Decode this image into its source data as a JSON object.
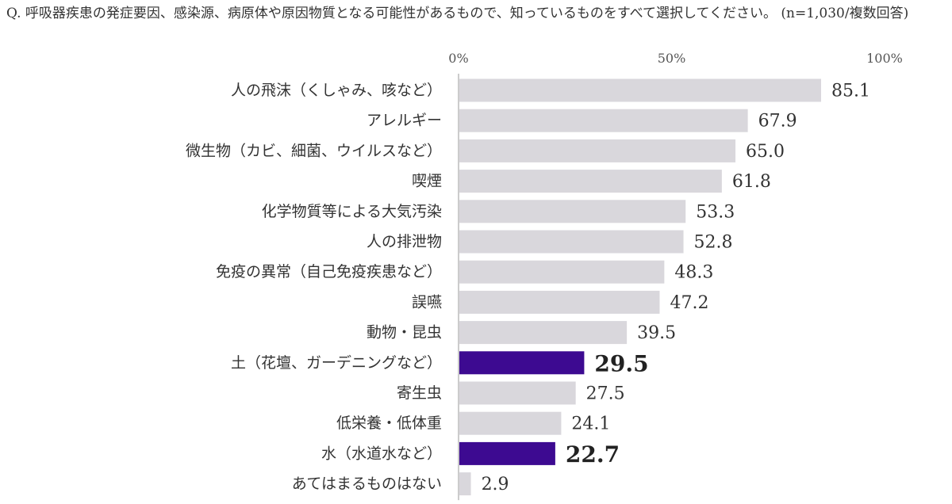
{
  "question": "Q. 呼吸器疾患の発症要因、感染源、病原体や原因物質となる可能性があるもので、知っているものをすべて選択してください。 (n=1,030/複数回答)",
  "colors": {
    "bar_default": "#d9d7dc",
    "bar_highlight": "#3d0a91",
    "axis": "#999999"
  },
  "chart_data": {
    "type": "bar",
    "orientation": "horizontal",
    "title": "Q. 呼吸器疾患の発症要因、感染源、病原体や原因物質となる可能性があるもので、知っているものをすべて選択してください。 (n=1,030/複数回答)",
    "xlim": [
      0,
      100
    ],
    "x_ticks": [
      "0%",
      "50%",
      "100%"
    ],
    "x_tick_values": [
      0,
      50,
      100
    ],
    "grid": false,
    "categories": [
      "人の飛沫（くしゃみ、咳など）",
      "アレルギー",
      "微生物（カビ、細菌、ウイルスなど）",
      "喫煙",
      "化学物質等による大気汚染",
      "人の排泄物",
      "免疫の異常（自己免疫疾患など）",
      "誤嚥",
      "動物・昆虫",
      "土（花壇、ガーデニングなど）",
      "寄生虫",
      "低栄養・低体重",
      "水（水道水など）",
      "あてはまるものはない"
    ],
    "values": [
      85.1,
      67.9,
      65.0,
      61.8,
      53.3,
      52.8,
      48.3,
      47.2,
      39.5,
      29.5,
      27.5,
      24.1,
      22.7,
      2.9
    ],
    "value_labels": [
      "85.1",
      "67.9",
      "65.0",
      "61.8",
      "53.3",
      "52.8",
      "48.3",
      "47.2",
      "39.5",
      "29.5",
      "27.5",
      "24.1",
      "22.7",
      "2.9"
    ],
    "highlighted": [
      "土（花壇、ガーデニングなど）",
      "水（水道水など）"
    ]
  }
}
